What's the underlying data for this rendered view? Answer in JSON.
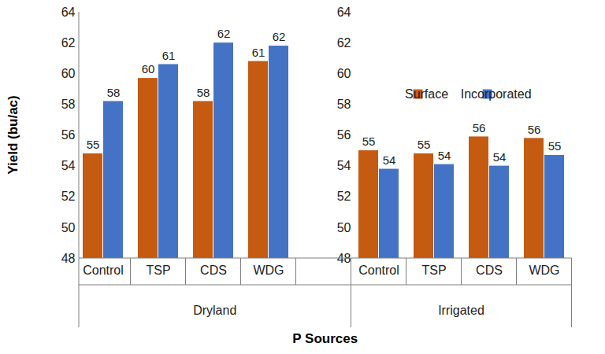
{
  "chart_data": {
    "type": "bar",
    "categories": [
      "Control",
      "TSP",
      "CDS",
      "WDG",
      null,
      "Control",
      "TSP",
      "CDS",
      "WDG"
    ],
    "groups": [
      "Dryland",
      "Dryland",
      "Dryland",
      "Dryland",
      "Dryland",
      "Irrigated",
      "Irrigated",
      "Irrigated",
      "Irrigated"
    ],
    "series": [
      {
        "name": "Surface",
        "color": "#C55A11",
        "values": [
          54.8,
          59.7,
          58.2,
          60.8,
          null,
          55.0,
          54.8,
          55.9,
          55.8
        ],
        "value_labels": [
          "55",
          "60",
          "58",
          "61",
          null,
          "55",
          "55",
          "56",
          "56"
        ]
      },
      {
        "name": "Incorporated",
        "color": "#4472C4",
        "values": [
          58.2,
          60.6,
          62.0,
          61.8,
          null,
          53.8,
          54.1,
          54.0,
          54.7
        ],
        "value_labels": [
          "58",
          "61",
          "62",
          "62",
          null,
          "54",
          "54",
          "54",
          "55"
        ]
      }
    ],
    "x_label": "P Sources",
    "y_label": "Yield (bu/ac)",
    "ylim": [
      48,
      64
    ],
    "yticks": [
      48,
      50,
      52,
      54,
      56,
      58,
      60,
      62,
      64
    ],
    "grid": false,
    "legend": "right",
    "data_labels": true
  }
}
